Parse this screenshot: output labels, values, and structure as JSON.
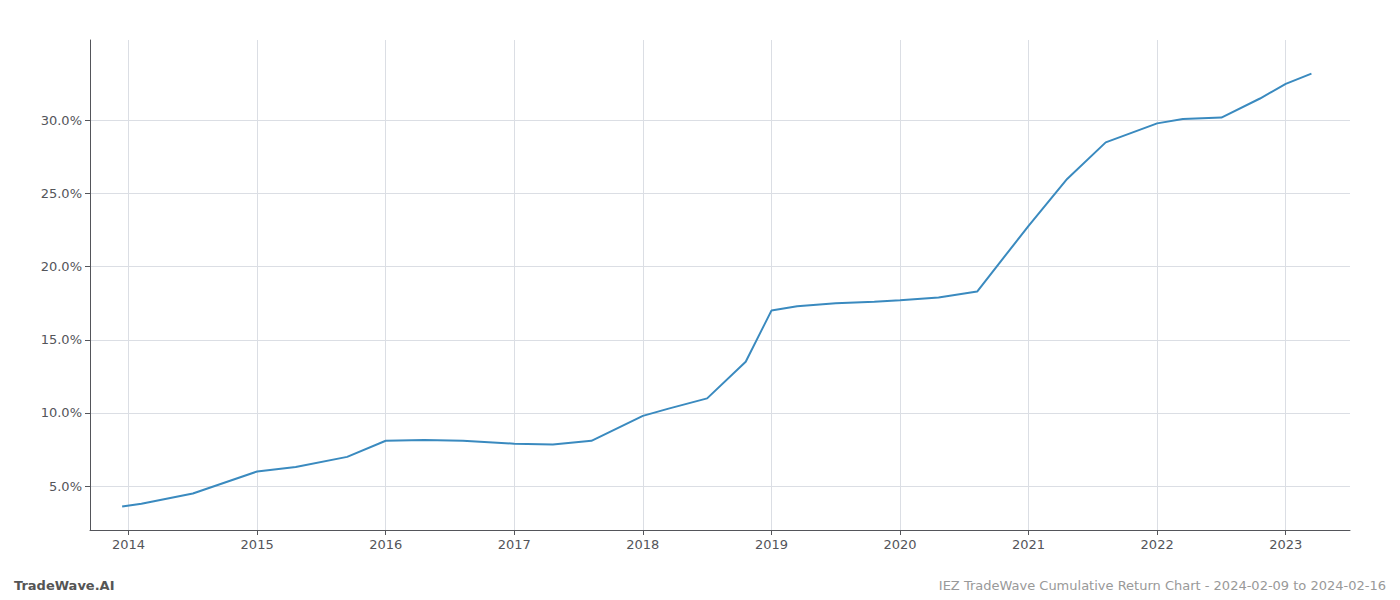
{
  "chart_data": {
    "type": "line",
    "x": [
      2013.95,
      2014.1,
      2014.5,
      2015.0,
      2015.3,
      2015.7,
      2016.0,
      2016.3,
      2016.6,
      2017.0,
      2017.3,
      2017.6,
      2018.0,
      2018.2,
      2018.5,
      2018.8,
      2019.0,
      2019.2,
      2019.5,
      2019.8,
      2020.0,
      2020.3,
      2020.6,
      2021.0,
      2021.3,
      2021.6,
      2022.0,
      2022.2,
      2022.5,
      2022.8,
      2023.0,
      2023.2
    ],
    "values": [
      3.6,
      3.8,
      4.5,
      6.0,
      6.3,
      7.0,
      8.1,
      8.15,
      8.1,
      7.9,
      7.85,
      8.1,
      9.8,
      10.3,
      11.0,
      13.5,
      17.0,
      17.3,
      17.5,
      17.6,
      17.7,
      17.9,
      18.3,
      22.8,
      26.0,
      28.5,
      29.8,
      30.1,
      30.2,
      31.5,
      32.5,
      33.2
    ],
    "color": "#3a8abf",
    "xlim": [
      2013.7,
      2023.5
    ],
    "xticks": [
      2014,
      2015,
      2016,
      2017,
      2018,
      2019,
      2020,
      2021,
      2022,
      2023
    ],
    "ylim": [
      2.0,
      35.5
    ],
    "yticks": [
      {
        "value": 5.0,
        "label": "5.0%"
      },
      {
        "value": 10.0,
        "label": "10.0%"
      },
      {
        "value": 15.0,
        "label": "15.0%"
      },
      {
        "value": 20.0,
        "label": "20.0%"
      },
      {
        "value": 25.0,
        "label": "25.0%"
      },
      {
        "value": 30.0,
        "label": "30.0%"
      }
    ],
    "grid": true,
    "annotations": [
      "TradeWave.AI",
      "IEZ TradeWave Cumulative Return Chart - 2024-02-09 to 2024-02-16"
    ]
  }
}
